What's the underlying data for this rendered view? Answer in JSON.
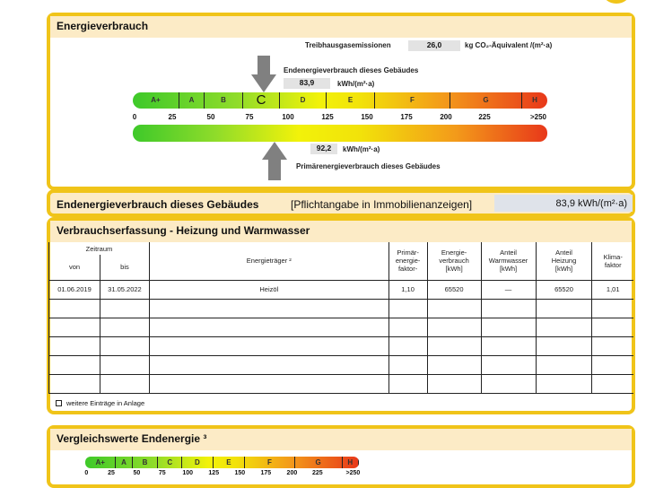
{
  "energieverbrauch": {
    "title": "Energieverbrauch",
    "treibhaus_label": "Treibhausgasemissionen",
    "treibhaus_value": "26,0",
    "treibhaus_unit": "kg CO₂-Äquivalent /(m²·a)",
    "end_label": "Endenergieverbrauch dieses Gebäudes",
    "end_value": "83,9",
    "end_unit": "kWh/(m²·a)",
    "prim_label": "Primärenergieverbrauch dieses Gebäudes",
    "prim_value": "92,2",
    "prim_unit": "kWh/(m²·a)",
    "classes": [
      "A+",
      "A",
      "B",
      "C",
      "D",
      "E",
      "F",
      "G",
      "H"
    ],
    "current_class": "C",
    "ticks": [
      "0",
      "25",
      "50",
      "75",
      "100",
      "125",
      "150",
      "175",
      "200",
      "225",
      ">250"
    ]
  },
  "summary": {
    "label": "Endenergieverbrauch dieses Gebäudes",
    "note": "[Pflichtangabe in Immobilienanzeigen]",
    "value": "83,9 kWh/(m²·a)"
  },
  "verbrauch": {
    "title": "Verbrauchserfassung - Heizung und Warmwasser",
    "headers": {
      "zeitraum": "Zeitraum",
      "von": "von",
      "bis": "bis",
      "traeger": "Energieträger ²",
      "primaer": "Primär-\nenergie-\nfaktor-",
      "energie": "Energie-\nverbrauch\n[kWh]",
      "ww": "Anteil\nWarmwasser\n[kWh]",
      "heiz": "Anteil\nHeizung\n[kWh]",
      "klima": "Klima-\nfaktor"
    },
    "rows": [
      {
        "von": "01.06.2019",
        "bis": "31.05.2022",
        "traeger": "Heizöl",
        "primaer": "1,10",
        "energie": "65520",
        "ww": "—",
        "heiz": "65520",
        "klima": "1,01"
      }
    ],
    "footer": "weitere Einträge in Anlage"
  },
  "vergleich": {
    "title": "Vergleichswerte Endenergie ³",
    "classes": [
      "A+",
      "A",
      "B",
      "C",
      "D",
      "E",
      "F",
      "G",
      "H"
    ],
    "ticks": [
      "0",
      "25",
      "50",
      "75",
      "100",
      "125",
      "150",
      "175",
      "200",
      "225",
      ">250"
    ]
  }
}
